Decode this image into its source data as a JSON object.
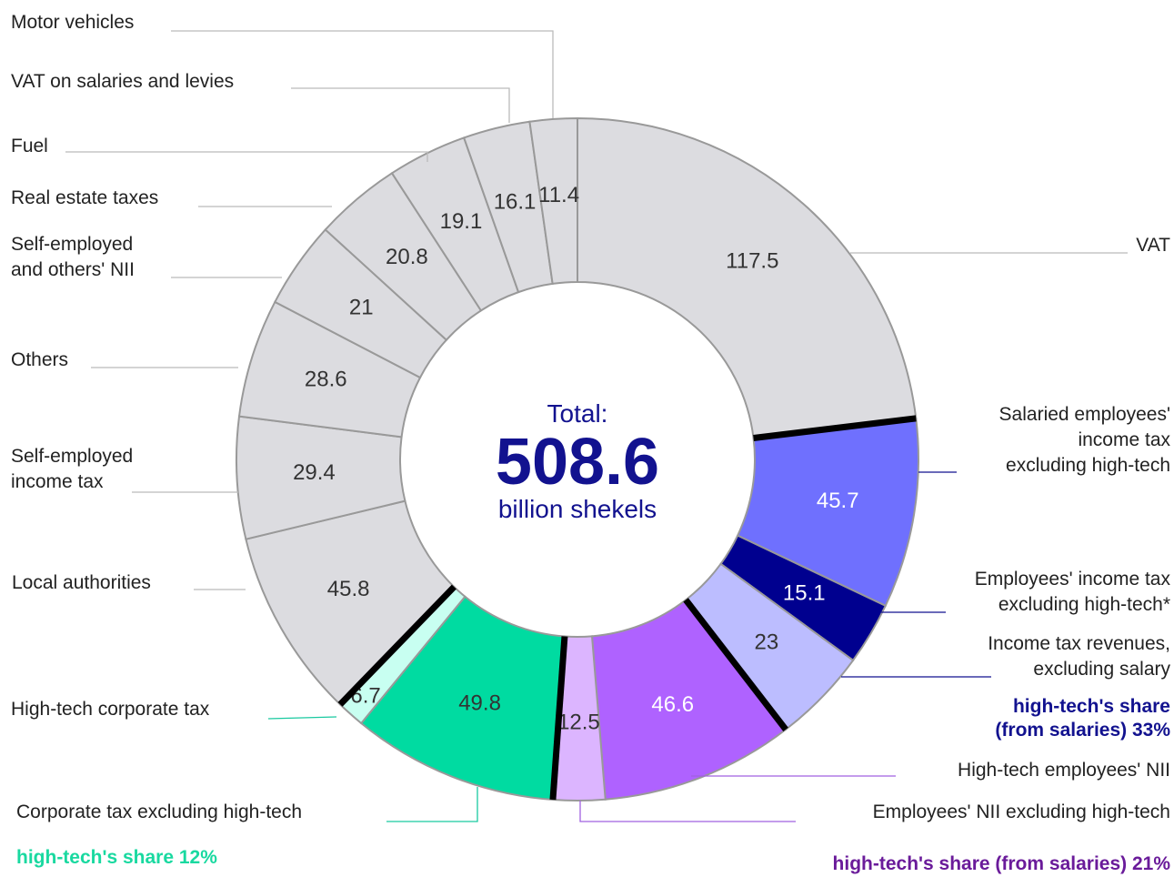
{
  "chart_data": {
    "type": "donut",
    "center_text": {
      "label": "Total:",
      "value": 508.6,
      "unit": "billion shekels"
    },
    "categories": [
      "VAT",
      "Salaried employees'\nincome tax\nexcluding high-tech",
      "Employees' income tax\nexcluding high-tech*",
      "Income tax revenues,\nexcluding salary",
      "High-tech employees' NII",
      "Employees' NII excluding high-tech",
      "Corporate tax excluding high-tech",
      "High-tech corporate tax",
      "Local authorities",
      "Self-employed\nincome tax",
      "Others",
      "Self-employed\nand others' NII",
      "Real estate taxes",
      "Fuel",
      "VAT on salaries and levies",
      "Motor vehicles"
    ],
    "values": [
      117.5,
      45.7,
      15.1,
      23,
      46.6,
      12.5,
      49.8,
      6.7,
      45.8,
      29.4,
      28.6,
      21,
      20.8,
      19.1,
      16.1,
      11.4
    ],
    "colors": [
      "#dcdce0",
      "#6f70fe",
      "#00008f",
      "#bcbdff",
      "#af62ff",
      "#dcb5ff",
      "#00dba1",
      "#c8fff1",
      "#dcdce0",
      "#dcdce0",
      "#dcdce0",
      "#dcdce0",
      "#dcdce0",
      "#dcdce0",
      "#dcdce0",
      "#dcdce0"
    ],
    "value_label_colors": [
      "#333333",
      "#ffffff",
      "#ffffff",
      "#333333",
      "#ffffff",
      "#333333",
      "#333333",
      "#333333",
      "#333333",
      "#333333",
      "#333333",
      "#333333",
      "#333333",
      "#333333",
      "#333333",
      "#333333"
    ],
    "annotations": [
      {
        "text": "high-tech's share\n(from salaries) 33%",
        "color": "#12128f"
      },
      {
        "text": "high-tech's share 12%",
        "color": "#19d9a0"
      },
      {
        "text": "high-tech's share (from salaries) 21%",
        "color": "#6a1b9a"
      }
    ]
  }
}
